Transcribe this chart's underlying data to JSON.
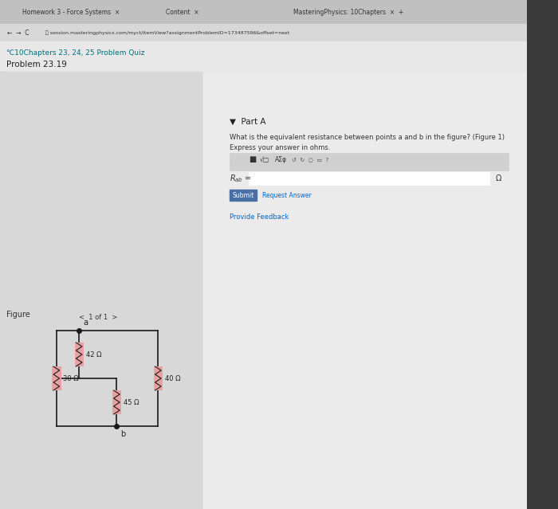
{
  "bg_color": "#d0d0d0",
  "page_bg": "#e8e8e8",
  "white_panel": "#f5f5f5",
  "browser_bg": "#3a3a3a",
  "tab_bar_bg": "#c8c8c8",
  "content_bg": "#f0f0f0",
  "title": "Problem 23.19",
  "quiz_label": "℃10Chapters 23, 24, 25 Problem Quiz",
  "part_a_label": "Part A",
  "question_text": "What is the equivalent resistance between points a and b in the figure? (Figure 1)",
  "express_text": "Express your answer in ohms.",
  "r_label": "R_{ab} =",
  "omega_symbol": "Ω",
  "submit_text": "Submit",
  "request_text": "Request Answer",
  "feedback_text": "Provide Feedback",
  "figure_text": "Figure",
  "page_text": "1 of 1",
  "resistors": [
    {
      "value": "42 Ω",
      "orientation": "vertical"
    },
    {
      "value": "30 Ω",
      "orientation": "vertical"
    },
    {
      "value": "45 Ω",
      "orientation": "vertical"
    },
    {
      "value": "40 Ω",
      "orientation": "vertical"
    }
  ],
  "resistor_color": "#e8a0a0",
  "wire_color": "#1a1a1a",
  "dot_color": "#1a1a1a",
  "url": "session.masteringphysics.com/myct/itemView?assignmentProblemID=173487596&offset=next"
}
